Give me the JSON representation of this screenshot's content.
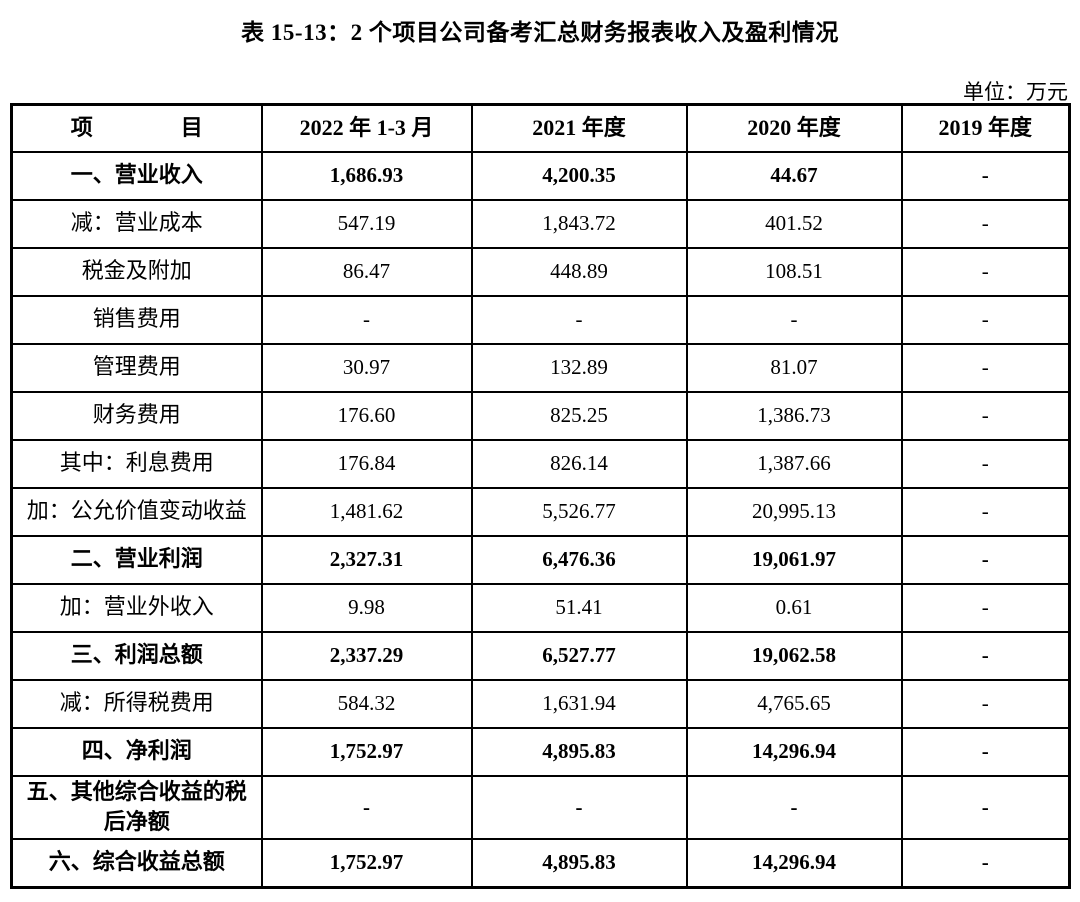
{
  "title": "表 15-13：2 个项目公司备考汇总财务报表收入及盈利情况",
  "unit_label": "单位：万元",
  "table": {
    "columns": [
      "项　　　　目",
      "2022 年 1-3 月",
      "2021 年度",
      "2020 年度",
      "2019 年度"
    ],
    "rows": [
      {
        "label": "一、营业收入",
        "bold": true,
        "values": [
          "1,686.93",
          "4,200.35",
          "44.67",
          "-"
        ]
      },
      {
        "label": "减：营业成本",
        "bold": false,
        "values": [
          "547.19",
          "1,843.72",
          "401.52",
          "-"
        ]
      },
      {
        "label": "税金及附加",
        "bold": false,
        "values": [
          "86.47",
          "448.89",
          "108.51",
          "-"
        ]
      },
      {
        "label": "销售费用",
        "bold": false,
        "values": [
          "-",
          "-",
          "-",
          "-"
        ]
      },
      {
        "label": "管理费用",
        "bold": false,
        "values": [
          "30.97",
          "132.89",
          "81.07",
          "-"
        ]
      },
      {
        "label": "财务费用",
        "bold": false,
        "values": [
          "176.60",
          "825.25",
          "1,386.73",
          "-"
        ]
      },
      {
        "label": "其中：利息费用",
        "bold": false,
        "values": [
          "176.84",
          "826.14",
          "1,387.66",
          "-"
        ]
      },
      {
        "label": "加：公允价值变动收益",
        "bold": false,
        "values": [
          "1,481.62",
          "5,526.77",
          "20,995.13",
          "-"
        ]
      },
      {
        "label": "二、营业利润",
        "bold": true,
        "values": [
          "2,327.31",
          "6,476.36",
          "19,061.97",
          "-"
        ]
      },
      {
        "label": "加：营业外收入",
        "bold": false,
        "values": [
          "9.98",
          "51.41",
          "0.61",
          "-"
        ]
      },
      {
        "label": "三、利润总额",
        "bold": true,
        "values": [
          "2,337.29",
          "6,527.77",
          "19,062.58",
          "-"
        ]
      },
      {
        "label": "减：所得税费用",
        "bold": false,
        "values": [
          "584.32",
          "1,631.94",
          "4,765.65",
          "-"
        ]
      },
      {
        "label": "四、净利润",
        "bold": true,
        "values": [
          "1,752.97",
          "4,895.83",
          "14,296.94",
          "-"
        ]
      },
      {
        "label": "五、其他综合收益的税后净额",
        "bold": true,
        "values": [
          "-",
          "-",
          "-",
          "-"
        ]
      },
      {
        "label": "六、综合收益总额",
        "bold": true,
        "values": [
          "1,752.97",
          "4,895.83",
          "14,296.94",
          "-"
        ]
      }
    ]
  }
}
